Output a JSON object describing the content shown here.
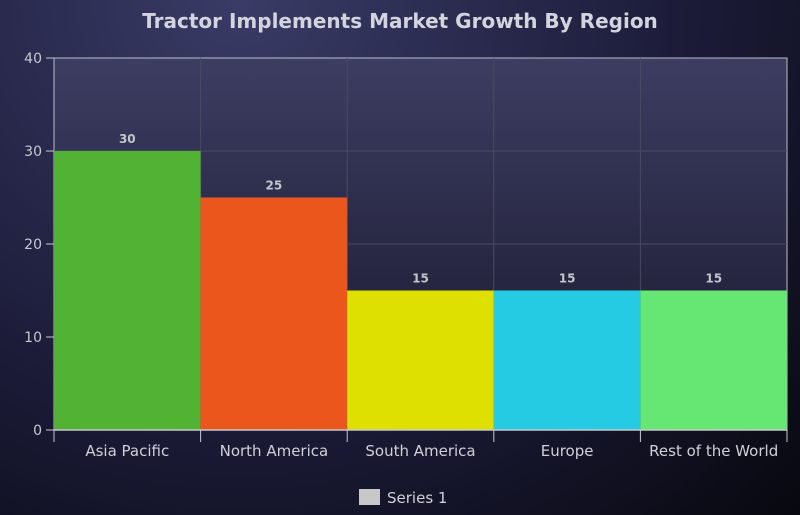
{
  "chart_data": {
    "type": "bar",
    "title": "Tractor Implements Market Growth By Region",
    "categories": [
      "Asia Pacific",
      "North America",
      "South America",
      "Europe",
      "Rest of the World"
    ],
    "series": [
      {
        "name": "Series 1",
        "values": [
          30,
          25,
          15,
          15,
          15
        ]
      }
    ],
    "bar_colors": [
      "#52b234",
      "#ea561c",
      "#dde000",
      "#25cbe2",
      "#66e672"
    ],
    "legend_swatch_color": "#c8c8c8",
    "ylim": [
      0,
      40
    ],
    "yticks": [
      0,
      10,
      20,
      30,
      40
    ],
    "grid": true,
    "legend": "bottom-center",
    "data_labels": true
  }
}
